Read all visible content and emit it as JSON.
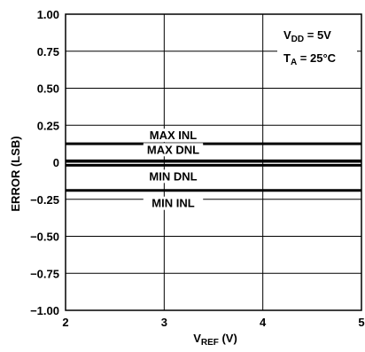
{
  "chart_data": {
    "type": "line",
    "xlabel_main": "V",
    "xlabel_sub": "REF",
    "xlabel_unit": " (V)",
    "ylabel": "ERROR (LSB)",
    "xlim": [
      2,
      5
    ],
    "ylim": [
      -1.0,
      1.0
    ],
    "xticks": [
      "2",
      "3",
      "4",
      "5"
    ],
    "yticks": [
      "1.00",
      "0.75",
      "0.50",
      "0.25",
      "0",
      "−0.25",
      "−0.50",
      "−0.75",
      "−1.00"
    ],
    "ytick_values": [
      1.0,
      0.75,
      0.5,
      0.25,
      0,
      -0.25,
      -0.5,
      -0.75,
      -1.0
    ],
    "xtick_values": [
      2,
      3,
      4,
      5
    ],
    "grid": {
      "vertical": true,
      "horizontal": true
    },
    "conditions": [
      {
        "main": "V",
        "sub": "DD",
        "rest": " = 5V"
      },
      {
        "main": "T",
        "sub": "A",
        "rest": " = 25°C"
      }
    ],
    "series": [
      {
        "name": "MAX INL",
        "x": [
          2,
          5
        ],
        "y": [
          0.125,
          0.125
        ]
      },
      {
        "name": "MAX DNL",
        "x": [
          2,
          5
        ],
        "y": [
          0.01,
          0.01
        ]
      },
      {
        "name": "MIN DNL",
        "x": [
          2,
          5
        ],
        "y": [
          -0.02,
          -0.02
        ]
      },
      {
        "name": "MIN INL",
        "x": [
          2,
          5
        ],
        "y": [
          -0.19,
          -0.19
        ]
      }
    ],
    "colors": {
      "line": "#000000",
      "background": "#ffffff"
    }
  }
}
